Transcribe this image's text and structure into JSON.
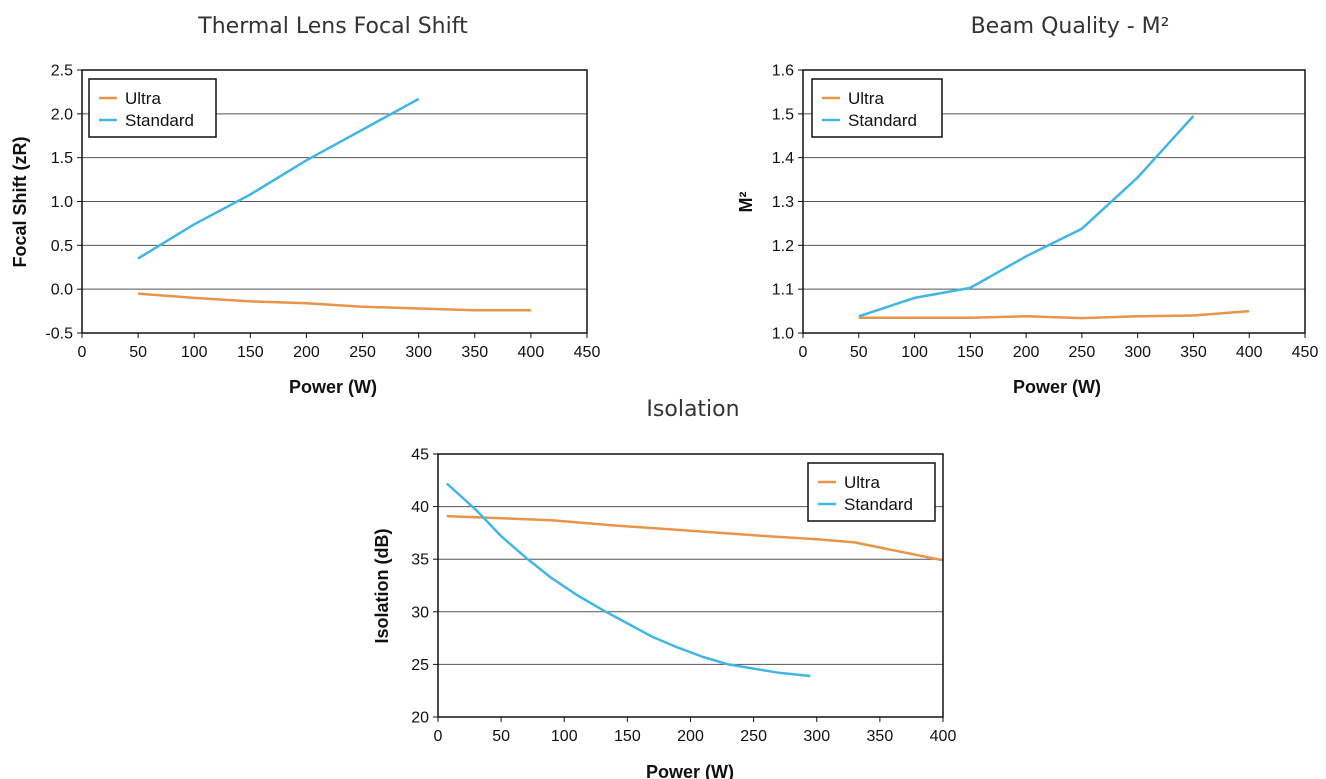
{
  "colors": {
    "ultra": "#E8954A",
    "standard": "#41B6E6",
    "grid": "#555555",
    "frame": "#111111"
  },
  "chart_data": [
    {
      "type": "line",
      "title": "Thermal Lens Focal Shift",
      "xlabel": "Power (W)",
      "ylabel": "Focal Shift (zR)",
      "xlim": [
        0,
        450
      ],
      "ylim": [
        -0.5,
        2.5
      ],
      "xticks": [
        "0",
        "50",
        "100",
        "150",
        "200",
        "250",
        "300",
        "350",
        "400",
        "450"
      ],
      "yticks": [
        "-0.5",
        "0.0",
        "0.5",
        "1.0",
        "1.5",
        "2.0",
        "2.5"
      ],
      "grid": "horizontal",
      "legend_position": "top-left",
      "series": [
        {
          "name": "Ultra",
          "x": [
            50,
            100,
            150,
            200,
            250,
            300,
            350,
            400
          ],
          "y": [
            -0.05,
            -0.1,
            -0.14,
            -0.16,
            -0.2,
            -0.22,
            -0.24,
            -0.24
          ]
        },
        {
          "name": "Standard",
          "x": [
            50,
            100,
            150,
            200,
            250,
            300
          ],
          "y": [
            0.35,
            0.74,
            1.08,
            1.47,
            1.82,
            2.17
          ]
        }
      ]
    },
    {
      "type": "line",
      "title": "Beam Quality - M²",
      "xlabel": "Power (W)",
      "ylabel": "M²",
      "xlim": [
        0,
        450
      ],
      "ylim": [
        1.0,
        1.6
      ],
      "xticks": [
        "0",
        "50",
        "100",
        "150",
        "200",
        "250",
        "300",
        "350",
        "400",
        "450"
      ],
      "yticks": [
        "1.0",
        "1.1",
        "1.2",
        "1.3",
        "1.4",
        "1.5",
        "1.6"
      ],
      "grid": "horizontal",
      "legend_position": "top-left",
      "series": [
        {
          "name": "Ultra",
          "x": [
            50,
            100,
            150,
            200,
            250,
            300,
            350,
            400
          ],
          "y": [
            1.035,
            1.035,
            1.035,
            1.038,
            1.034,
            1.038,
            1.04,
            1.05
          ]
        },
        {
          "name": "Standard",
          "x": [
            50,
            100,
            150,
            200,
            250,
            300,
            350
          ],
          "y": [
            1.038,
            1.08,
            1.103,
            1.175,
            1.238,
            1.355,
            1.495
          ]
        }
      ]
    },
    {
      "type": "line",
      "title": "Isolation",
      "xlabel": "Power (W)",
      "ylabel": "Isolation (dB)",
      "xlim": [
        0,
        400
      ],
      "ylim": [
        20,
        45
      ],
      "xticks": [
        "0",
        "50",
        "100",
        "150",
        "200",
        "250",
        "300",
        "350",
        "400"
      ],
      "yticks": [
        "20",
        "25",
        "30",
        "35",
        "40",
        "45"
      ],
      "grid": "horizontal",
      "legend_position": "top-right",
      "series": [
        {
          "name": "Ultra",
          "x": [
            7,
            50,
            90,
            140,
            200,
            260,
            300,
            330,
            400
          ],
          "y": [
            39.1,
            38.9,
            38.7,
            38.2,
            37.7,
            37.2,
            36.9,
            36.6,
            34.9
          ]
        },
        {
          "name": "Standard",
          "x": [
            7,
            30,
            50,
            70,
            90,
            110,
            130,
            150,
            170,
            190,
            210,
            230,
            250,
            270,
            295
          ],
          "y": [
            42.2,
            39.7,
            37.2,
            35.1,
            33.2,
            31.6,
            30.2,
            28.9,
            27.6,
            26.6,
            25.7,
            25.0,
            24.6,
            24.2,
            23.9
          ]
        }
      ]
    }
  ]
}
